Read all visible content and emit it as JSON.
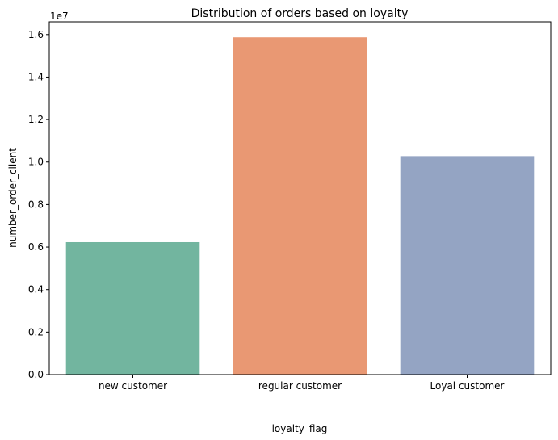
{
  "chart_data": {
    "type": "bar",
    "title": "Distribution of orders based on loyalty",
    "xlabel": "loyalty_flag",
    "ylabel": "number_order_client",
    "y_scale_label": "1e7",
    "categories": [
      "new customer",
      "regular customer",
      "Loyal customer"
    ],
    "values": [
      6230000,
      15870000,
      10280000
    ],
    "ylim": [
      0,
      16600000
    ],
    "yticks": [
      0,
      2000000,
      4000000,
      6000000,
      8000000,
      10000000,
      12000000,
      14000000,
      16000000
    ],
    "ytick_labels": [
      "0.0",
      "0.2",
      "0.4",
      "0.6",
      "0.8",
      "1.0",
      "1.2",
      "1.4",
      "1.6"
    ],
    "colors": [
      "#72b59f",
      "#e99873",
      "#94a4c3"
    ],
    "grid": false,
    "legend": "none"
  }
}
